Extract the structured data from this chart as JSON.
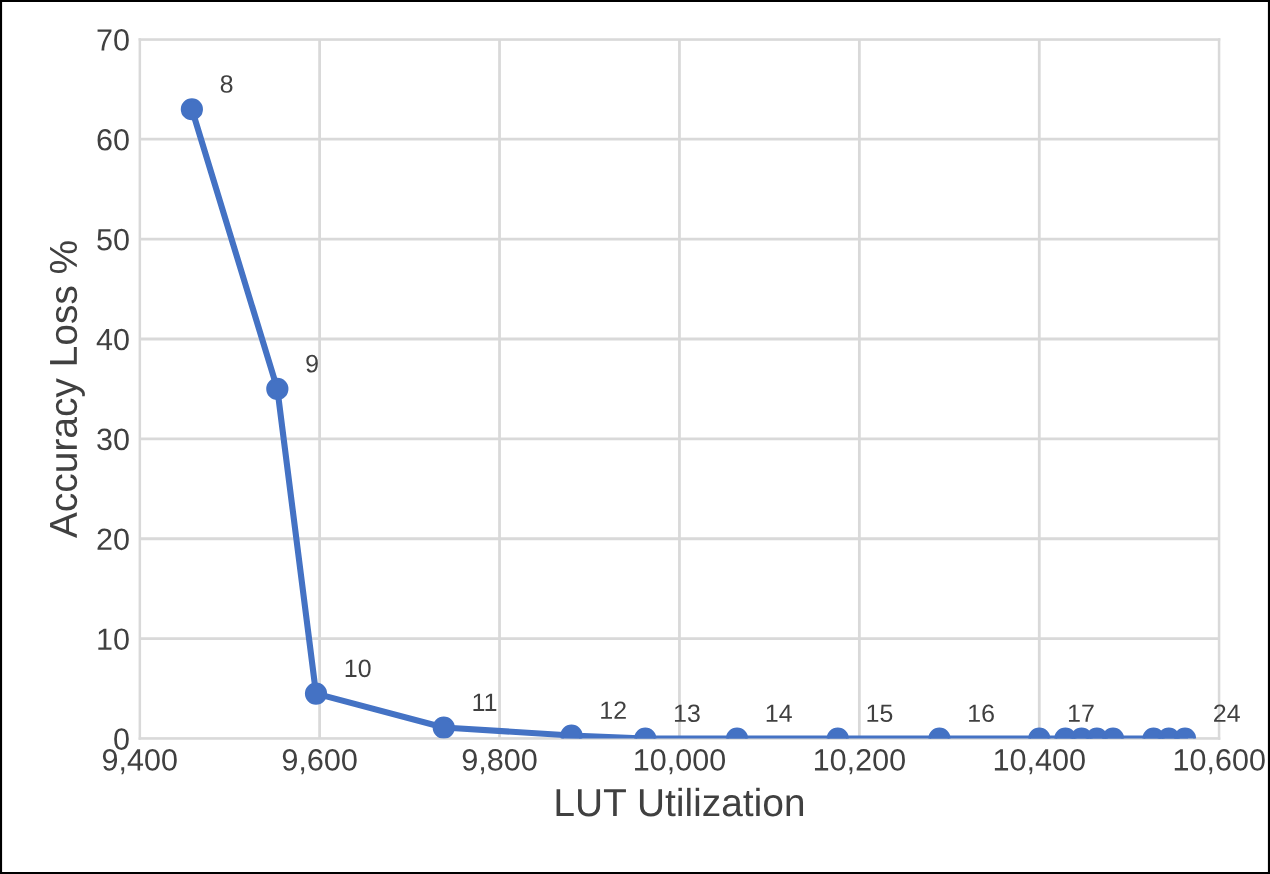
{
  "chart_data": {
    "type": "line",
    "xlabel": "LUT Utilization",
    "ylabel": "Accuracy Loss %",
    "x": [
      9458,
      9553,
      9596,
      9738,
      9880,
      9962,
      10064,
      10176,
      10289,
      10400,
      10429,
      10447,
      10464,
      10482,
      10527,
      10544,
      10562
    ],
    "series": [
      {
        "color": "#4472c4",
        "values": [
          63,
          35,
          4.5,
          1.1,
          0.3,
          0,
          0,
          0,
          0,
          0,
          0,
          0,
          0,
          0,
          0,
          0,
          0
        ]
      }
    ],
    "annotations": [
      {
        "text": "8",
        "x": 9458,
        "y": 63
      },
      {
        "text": "9",
        "x": 9553,
        "y": 35
      },
      {
        "text": "10",
        "x": 9596,
        "y": 4.5
      },
      {
        "text": "11",
        "x": 9738,
        "y": 1.1
      },
      {
        "text": "12",
        "x": 9880,
        "y": 0.3
      },
      {
        "text": "13",
        "x": 9962,
        "y": 0
      },
      {
        "text": "14",
        "x": 10064,
        "y": 0
      },
      {
        "text": "15",
        "x": 10176,
        "y": 0
      },
      {
        "text": "16",
        "x": 10289,
        "y": 0
      },
      {
        "text": "17",
        "x": 10400,
        "y": 0
      },
      {
        "text": "24",
        "x": 10562,
        "y": 0
      }
    ],
    "xlim": [
      9400,
      10600
    ],
    "xticks": [
      {
        "value": 9400,
        "label": "9,400"
      },
      {
        "value": 9600,
        "label": "9,600"
      },
      {
        "value": 9800,
        "label": "9,800"
      },
      {
        "value": 10000,
        "label": "10,000"
      },
      {
        "value": 10200,
        "label": "10,200"
      },
      {
        "value": 10400,
        "label": "10,400"
      },
      {
        "value": 10600,
        "label": "10,600"
      }
    ],
    "ylim": [
      0,
      70
    ],
    "yticks": [
      0,
      10,
      20,
      30,
      40,
      50,
      60,
      70
    ],
    "grid": true,
    "marker": "circle",
    "line_style": "solid"
  }
}
